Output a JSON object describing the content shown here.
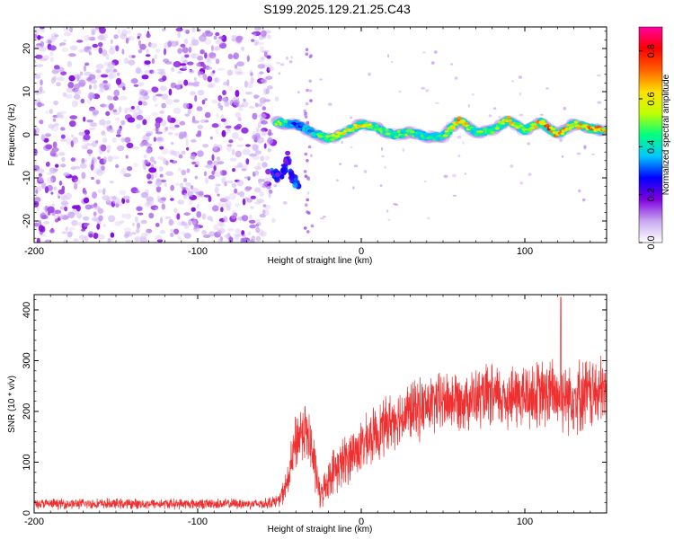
{
  "title": "S199.2025.129.21.25.C43",
  "chart_data": [
    {
      "type": "heatmap",
      "xlabel": "Height of straight line (km)",
      "ylabel": "Frequency (Hz)",
      "xlim": [
        -200,
        150
      ],
      "ylim": [
        -25,
        25
      ],
      "xticks": [
        -200,
        -100,
        0,
        100
      ],
      "yticks": [
        -20,
        -10,
        0,
        10,
        20
      ],
      "colorbar": {
        "label": "Normalized spectral amplitude",
        "range": [
          0,
          0.9
        ],
        "ticks": [
          0.0,
          0.2,
          0.4,
          0.6,
          0.8
        ],
        "colormap": [
          "#ffffff",
          "#c8a8f0",
          "#8000e0",
          "#0000ff",
          "#00c8ff",
          "#00ff80",
          "#c0ff00",
          "#ffe000",
          "#ff6000",
          "#ff0000",
          "#ff00a0"
        ]
      },
      "noise_region_x": [
        -200,
        -55
      ],
      "trace": {
        "x": [
          -52,
          -45,
          -40,
          -30,
          -20,
          -10,
          0,
          10,
          20,
          30,
          40,
          50,
          60,
          70,
          80,
          90,
          100,
          110,
          120,
          130,
          140,
          150
        ],
        "y": [
          3,
          2.5,
          2.5,
          0.5,
          -1,
          0.5,
          2.5,
          1.5,
          0,
          0.5,
          -0.5,
          -0.5,
          3.5,
          0.5,
          1.0,
          3.5,
          1.0,
          3.0,
          0,
          2.5,
          1.5,
          1.0
        ],
        "amp": [
          0.7,
          0.5,
          0.35,
          0.5,
          0.6,
          0.7,
          0.75,
          0.6,
          0.55,
          0.6,
          0.5,
          0.55,
          0.8,
          0.6,
          0.55,
          0.8,
          0.6,
          0.85,
          0.9,
          0.7,
          0.85,
          0.8
        ]
      },
      "branch": {
        "x": [
          -55,
          -50,
          -47,
          -45,
          -42,
          -38
        ],
        "y": [
          -9,
          -10,
          -8,
          -5,
          -10,
          -12
        ]
      }
    },
    {
      "type": "line",
      "xlabel": "Height of straight line (km)",
      "ylabel": "SNR (10 * v/v)",
      "xlim": [
        -200,
        150
      ],
      "ylim": [
        0,
        430
      ],
      "xticks": [
        -200,
        -100,
        0,
        100
      ],
      "yticks": [
        0,
        100,
        200,
        300,
        400
      ],
      "color": "#ee3030",
      "envelope": {
        "x": [
          -200,
          -60,
          -50,
          -45,
          -40,
          -35,
          -30,
          -25,
          -22,
          -18,
          -12,
          -5,
          0,
          10,
          20,
          30,
          40,
          50,
          60,
          70,
          80,
          90,
          100,
          110,
          120,
          130,
          140,
          150
        ],
        "mean": [
          18,
          18,
          25,
          60,
          140,
          170,
          120,
          30,
          55,
          80,
          95,
          120,
          130,
          160,
          185,
          200,
          210,
          220,
          225,
          225,
          228,
          228,
          230,
          232,
          235,
          232,
          235,
          235
        ],
        "noise": [
          12,
          12,
          15,
          40,
          70,
          70,
          70,
          30,
          40,
          50,
          60,
          60,
          60,
          65,
          65,
          70,
          70,
          70,
          70,
          70,
          75,
          75,
          80,
          80,
          85,
          85,
          85,
          85
        ]
      },
      "peak": {
        "x": 122,
        "y": 425
      }
    }
  ]
}
